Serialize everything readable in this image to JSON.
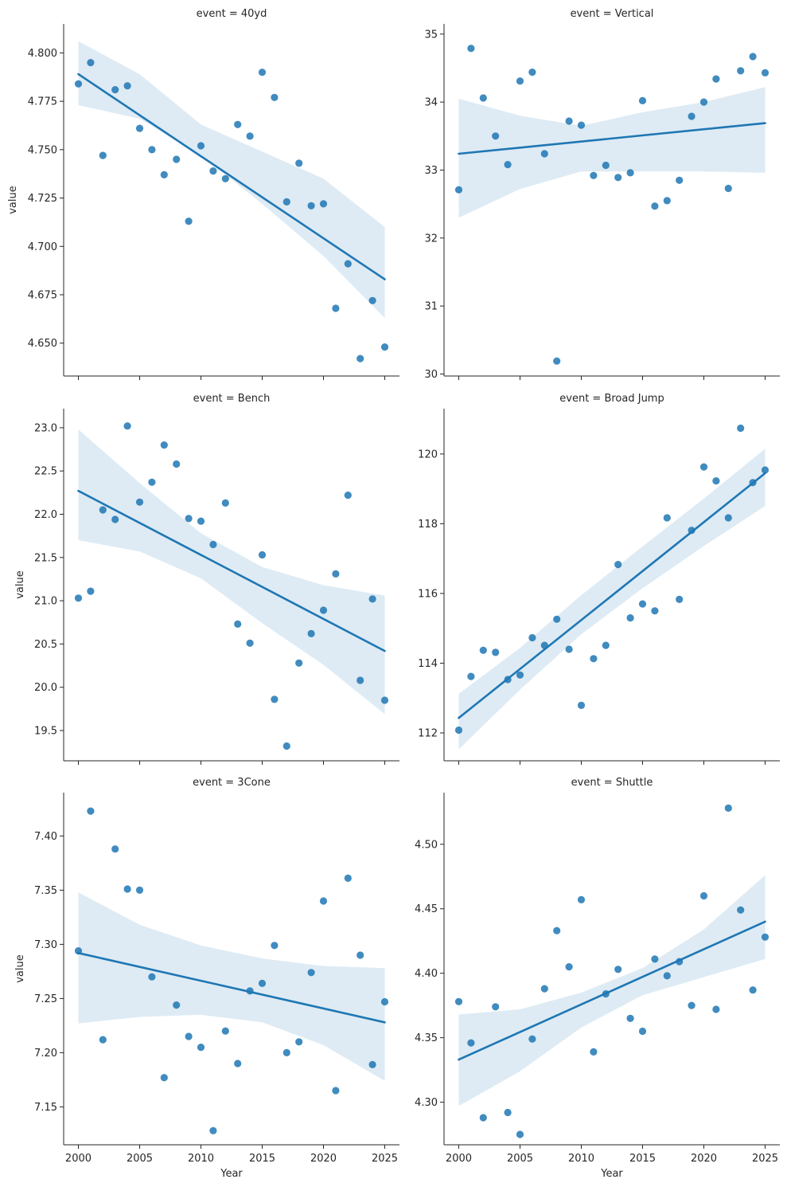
{
  "x_axis_label": "Year",
  "y_axis_label": "value",
  "colors": {
    "point": "#1f77b4",
    "line": "#1f77b4",
    "band": "#1f77b4",
    "axis": "#262626"
  },
  "chart_data": [
    {
      "type": "scatter",
      "title": "event = 40yd",
      "xlabel": "",
      "ylabel": "value",
      "xlim": [
        1998.8,
        2026.2
      ],
      "ylim": [
        4.633,
        4.815
      ],
      "xticks": [
        2000,
        2005,
        2010,
        2015,
        2020,
        2025
      ],
      "xtick_labels": [],
      "yticks": [
        4.65,
        4.675,
        4.7,
        4.725,
        4.75,
        4.775,
        4.8
      ],
      "ytick_labels": [
        "4.650",
        "4.675",
        "4.700",
        "4.725",
        "4.750",
        "4.775",
        "4.800"
      ],
      "x": [
        2000,
        2001,
        2002,
        2003,
        2004,
        2005,
        2006,
        2007,
        2008,
        2009,
        2010,
        2011,
        2012,
        2013,
        2014,
        2015,
        2016,
        2017,
        2018,
        2019,
        2020,
        2021,
        2022,
        2023,
        2024,
        2025
      ],
      "y": [
        4.784,
        4.795,
        4.747,
        4.781,
        4.783,
        4.761,
        4.75,
        4.737,
        4.745,
        4.713,
        4.752,
        4.739,
        4.735,
        4.763,
        4.757,
        4.79,
        4.777,
        4.723,
        4.743,
        4.721,
        4.722,
        4.668,
        4.691,
        4.642,
        4.672,
        4.648
      ],
      "fit": {
        "x": [
          2000,
          2025
        ],
        "y": [
          4.789,
          4.683
        ]
      },
      "ci": {
        "x": [
          2000,
          2005,
          2010,
          2015,
          2020,
          2025
        ],
        "upper": [
          4.806,
          4.789,
          4.763,
          4.749,
          4.735,
          4.71
        ],
        "lower": [
          4.773,
          4.766,
          4.747,
          4.722,
          4.695,
          4.663
        ]
      }
    },
    {
      "type": "scatter",
      "title": "event = Vertical",
      "xlabel": "",
      "ylabel": "",
      "xlim": [
        1998.8,
        2026.2
      ],
      "ylim": [
        29.97,
        35.15
      ],
      "xticks": [
        2000,
        2005,
        2010,
        2015,
        2020,
        2025
      ],
      "xtick_labels": [],
      "yticks": [
        30,
        31,
        32,
        33,
        34,
        35
      ],
      "ytick_labels": [
        "30",
        "31",
        "32",
        "33",
        "34",
        "35"
      ],
      "x": [
        2000,
        2001,
        2002,
        2003,
        2004,
        2005,
        2006,
        2007,
        2008,
        2009,
        2010,
        2011,
        2012,
        2013,
        2014,
        2015,
        2016,
        2017,
        2018,
        2019,
        2020,
        2021,
        2022,
        2023,
        2024,
        2025
      ],
      "y": [
        32.71,
        34.79,
        34.06,
        33.5,
        33.08,
        34.31,
        34.44,
        33.24,
        30.19,
        33.72,
        33.66,
        32.92,
        33.07,
        32.89,
        32.96,
        34.02,
        32.47,
        32.55,
        32.85,
        33.79,
        34.0,
        34.34,
        32.73,
        34.46,
        34.67,
        34.43
      ],
      "fit": {
        "x": [
          2000,
          2025
        ],
        "y": [
          33.24,
          33.69
        ]
      },
      "ci": {
        "x": [
          2000,
          2005,
          2010,
          2015,
          2020,
          2025
        ],
        "upper": [
          34.05,
          33.8,
          33.65,
          33.85,
          34.0,
          34.22
        ],
        "lower": [
          32.3,
          32.72,
          32.98,
          32.98,
          32.98,
          32.96
        ]
      }
    },
    {
      "type": "scatter",
      "title": "event = Bench",
      "xlabel": "",
      "ylabel": "value",
      "xlim": [
        1998.8,
        2026.2
      ],
      "ylim": [
        19.15,
        23.22
      ],
      "xticks": [
        2000,
        2005,
        2010,
        2015,
        2020,
        2025
      ],
      "xtick_labels": [],
      "yticks": [
        19.5,
        20.0,
        20.5,
        21.0,
        21.5,
        22.0,
        22.5,
        23.0
      ],
      "ytick_labels": [
        "19.5",
        "20.0",
        "20.5",
        "21.0",
        "21.5",
        "22.0",
        "22.5",
        "23.0"
      ],
      "x": [
        2000,
        2001,
        2002,
        2003,
        2004,
        2005,
        2006,
        2007,
        2008,
        2009,
        2010,
        2011,
        2012,
        2013,
        2014,
        2015,
        2016,
        2017,
        2018,
        2019,
        2020,
        2021,
        2022,
        2023,
        2024,
        2025
      ],
      "y": [
        21.03,
        21.11,
        22.05,
        21.94,
        23.02,
        22.14,
        22.37,
        22.8,
        22.58,
        21.95,
        21.92,
        21.65,
        22.13,
        20.73,
        20.51,
        21.53,
        19.86,
        19.32,
        20.28,
        20.62,
        20.89,
        21.31,
        22.22,
        20.08,
        21.02,
        19.85
      ],
      "fit": {
        "x": [
          2000,
          2025
        ],
        "y": [
          22.27,
          20.42
        ]
      },
      "ci": {
        "x": [
          2000,
          2005,
          2010,
          2015,
          2020,
          2025
        ],
        "upper": [
          22.98,
          22.36,
          21.78,
          21.39,
          21.18,
          21.06
        ],
        "lower": [
          21.7,
          21.57,
          21.26,
          20.74,
          20.26,
          19.69
        ]
      }
    },
    {
      "type": "scatter",
      "title": "event = Broad Jump",
      "xlabel": "",
      "ylabel": "",
      "xlim": [
        1998.8,
        2026.2
      ],
      "ylim": [
        111.2,
        121.3
      ],
      "xticks": [
        2000,
        2005,
        2010,
        2015,
        2020,
        2025
      ],
      "xtick_labels": [],
      "yticks": [
        112,
        114,
        116,
        118,
        120
      ],
      "ytick_labels": [
        "112",
        "114",
        "116",
        "118",
        "120"
      ],
      "x": [
        2000,
        2001,
        2002,
        2003,
        2004,
        2005,
        2006,
        2007,
        2008,
        2009,
        2010,
        2011,
        2012,
        2013,
        2014,
        2015,
        2016,
        2017,
        2018,
        2019,
        2020,
        2021,
        2022,
        2023,
        2024,
        2025
      ],
      "y": [
        112.08,
        113.62,
        114.37,
        114.31,
        113.53,
        113.66,
        114.73,
        114.51,
        115.26,
        114.4,
        112.79,
        114.13,
        114.51,
        116.83,
        115.3,
        115.7,
        115.5,
        118.17,
        115.83,
        117.81,
        119.63,
        119.23,
        118.17,
        120.74,
        119.18,
        119.54
      ],
      "fit": {
        "x": [
          2000,
          2025
        ],
        "y": [
          112.43,
          119.45
        ]
      },
      "ci": {
        "x": [
          2000,
          2005,
          2010,
          2015,
          2020,
          2025
        ],
        "upper": [
          113.12,
          114.44,
          115.95,
          117.35,
          118.72,
          120.15
        ],
        "lower": [
          111.53,
          113.24,
          114.83,
          116.15,
          117.36,
          118.51
        ]
      }
    },
    {
      "type": "scatter",
      "title": "event = 3Cone",
      "xlabel": "Year",
      "ylabel": "value",
      "xlim": [
        1998.8,
        2026.2
      ],
      "ylim": [
        7.115,
        7.44
      ],
      "xticks": [
        2000,
        2005,
        2010,
        2015,
        2020,
        2025
      ],
      "xtick_labels": [
        "2000",
        "2005",
        "2010",
        "2015",
        "2020",
        "2025"
      ],
      "yticks": [
        7.15,
        7.2,
        7.25,
        7.3,
        7.35,
        7.4
      ],
      "ytick_labels": [
        "7.15",
        "7.20",
        "7.25",
        "7.30",
        "7.35",
        "7.40"
      ],
      "x": [
        2000,
        2001,
        2002,
        2003,
        2004,
        2005,
        2006,
        2007,
        2008,
        2009,
        2010,
        2011,
        2012,
        2013,
        2014,
        2015,
        2016,
        2017,
        2018,
        2019,
        2020,
        2021,
        2022,
        2023,
        2024,
        2025
      ],
      "y": [
        7.294,
        7.423,
        7.212,
        7.388,
        7.351,
        7.35,
        7.27,
        7.177,
        7.244,
        7.215,
        7.205,
        7.128,
        7.22,
        7.19,
        7.257,
        7.264,
        7.299,
        7.2,
        7.21,
        7.274,
        7.34,
        7.165,
        7.361,
        7.29,
        7.189,
        7.247
      ],
      "fit": {
        "x": [
          2000,
          2025
        ],
        "y": [
          7.292,
          7.228
        ]
      },
      "ci": {
        "x": [
          2000,
          2005,
          2010,
          2015,
          2020,
          2025
        ],
        "upper": [
          7.348,
          7.318,
          7.299,
          7.287,
          7.28,
          7.278
        ],
        "lower": [
          7.227,
          7.233,
          7.235,
          7.228,
          7.207,
          7.174
        ]
      }
    },
    {
      "type": "scatter",
      "title": "event = Shuttle",
      "xlabel": "Year",
      "ylabel": "",
      "xlim": [
        1998.8,
        2026.2
      ],
      "ylim": [
        4.267,
        4.54
      ],
      "xticks": [
        2000,
        2005,
        2010,
        2015,
        2020,
        2025
      ],
      "xtick_labels": [
        "2000",
        "2005",
        "2010",
        "2015",
        "2020",
        "2025"
      ],
      "yticks": [
        4.3,
        4.35,
        4.4,
        4.45,
        4.5
      ],
      "ytick_labels": [
        "4.30",
        "4.35",
        "4.40",
        "4.45",
        "4.50"
      ],
      "x": [
        2000,
        2001,
        2002,
        2003,
        2004,
        2005,
        2006,
        2007,
        2008,
        2009,
        2010,
        2011,
        2012,
        2013,
        2014,
        2015,
        2016,
        2017,
        2018,
        2019,
        2020,
        2021,
        2022,
        2023,
        2024,
        2025
      ],
      "y": [
        4.378,
        4.346,
        4.288,
        4.374,
        4.292,
        4.275,
        4.349,
        4.388,
        4.433,
        4.405,
        4.457,
        4.339,
        4.384,
        4.403,
        4.365,
        4.355,
        4.411,
        4.398,
        4.409,
        4.375,
        4.46,
        4.372,
        4.528,
        4.449,
        4.387,
        4.428
      ],
      "fit": {
        "x": [
          2000,
          2025
        ],
        "y": [
          4.333,
          4.44
        ]
      },
      "ci": {
        "x": [
          2000,
          2005,
          2010,
          2015,
          2020,
          2025
        ],
        "upper": [
          4.368,
          4.372,
          4.385,
          4.404,
          4.434,
          4.476
        ],
        "lower": [
          4.297,
          4.324,
          4.358,
          4.383,
          4.397,
          4.411
        ]
      }
    }
  ]
}
